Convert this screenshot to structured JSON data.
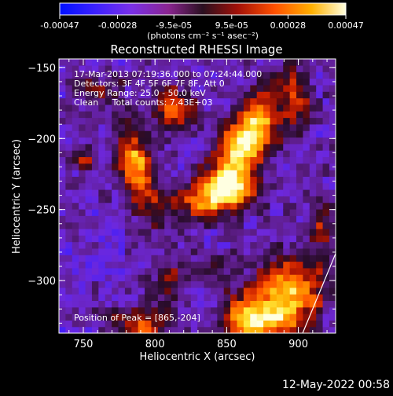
{
  "colorbar": {
    "tick_values": [
      -0.00047,
      -0.00028,
      -9.5e-05,
      9.5e-05,
      0.00028,
      0.00047
    ],
    "tick_labels": [
      "-0.00047",
      "-0.00028",
      "-9.5e-05",
      "9.5e-05",
      "0.00028",
      "0.00047"
    ],
    "unit_label": "(photons cm⁻² s⁻¹ asec⁻²)",
    "range": [
      -0.00047,
      0.00047
    ]
  },
  "chart_data": {
    "type": "heatmap",
    "title": "Reconstructed RHESSI Image",
    "xlabel": "Heliocentric X (arcsec)",
    "ylabel": "Heliocentric Y (arcsec)",
    "xlim": [
      733,
      926
    ],
    "ylim": [
      -337,
      -144
    ],
    "x_ticks": [
      750,
      800,
      850,
      900
    ],
    "y_ticks": [
      -150,
      -200,
      -250,
      -300
    ],
    "x_tick_labels": [
      "750",
      "800",
      "850",
      "900"
    ],
    "y_tick_labels": [
      "−150",
      "−200",
      "−250",
      "−300"
    ],
    "annotations": [
      "17-Mar-2013 07:19:36.000 to 07:24:44.000",
      "Detectors: 3F 4F 5F 6F 7F 8F, Att 0",
      "Energy Range: 25.0 - 50.0 keV",
      "Clean     Total counts: 7.43E+03"
    ],
    "peak_label": "Position of Peak = [865,-204]",
    "peak": [
      865,
      -204
    ],
    "colormap": "red-temperature (blue-purple negative to white-yellow positive)",
    "sources": [
      {
        "x": 864,
        "y": -200,
        "amp": 1.0,
        "sx": 11,
        "sy": 26,
        "rot": -0.55
      },
      {
        "x": 852,
        "y": -235,
        "amp": 0.75,
        "sx": 14,
        "sy": 10,
        "rot": 0
      },
      {
        "x": 830,
        "y": -245,
        "amp": 0.5,
        "sx": 18,
        "sy": 8,
        "rot": 0.2
      },
      {
        "x": 787,
        "y": -220,
        "amp": 0.75,
        "sx": 9,
        "sy": 22,
        "rot": 0.25
      },
      {
        "x": 812,
        "y": -180,
        "amp": 0.6,
        "sx": 10,
        "sy": 12,
        "rot": 0
      },
      {
        "x": 750,
        "y": -215,
        "amp": 0.45,
        "sx": 6,
        "sy": 6,
        "rot": 0
      },
      {
        "x": 893,
        "y": -310,
        "amp": 0.85,
        "sx": 16,
        "sy": 20,
        "rot": -0.4
      },
      {
        "x": 860,
        "y": -320,
        "amp": 0.5,
        "sx": 10,
        "sy": 9,
        "rot": 0
      },
      {
        "x": 872,
        "y": -330,
        "amp": 0.55,
        "sx": 16,
        "sy": 7,
        "rot": 0
      },
      {
        "x": 790,
        "y": -330,
        "amp": 0.55,
        "sx": 16,
        "sy": 8,
        "rot": 0
      },
      {
        "x": 810,
        "y": -300,
        "amp": 0.35,
        "sx": 10,
        "sy": 10,
        "rot": 0
      },
      {
        "x": 760,
        "y": -165,
        "amp": 0.3,
        "sx": 12,
        "sy": 8,
        "rot": 0
      },
      {
        "x": 900,
        "y": -170,
        "amp": 0.35,
        "sx": 8,
        "sy": 16,
        "rot": 0
      },
      {
        "x": 917,
        "y": -262,
        "amp": 0.35,
        "sx": 6,
        "sy": 14,
        "rot": 0
      },
      {
        "x": 840,
        "y": -290,
        "amp": 0.25,
        "sx": 10,
        "sy": 8,
        "rot": 0
      }
    ],
    "limb_line": [
      [
        903,
        -337
      ],
      [
        926,
        -281
      ]
    ]
  },
  "footer": {
    "date": "12-May-2022 00:58"
  }
}
